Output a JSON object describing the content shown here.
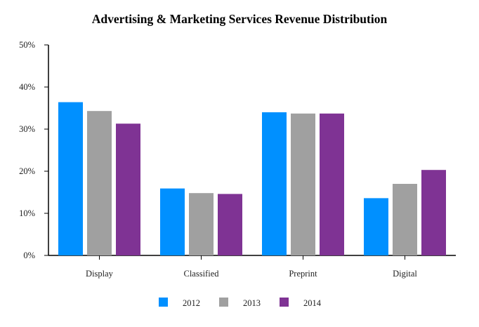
{
  "chart_data": {
    "type": "bar",
    "title": "Advertising & Marketing Services Revenue Distribution",
    "xlabel": "",
    "ylabel": "",
    "categories": [
      "Display",
      "Classified",
      "Preprint",
      "Digital"
    ],
    "series": [
      {
        "name": "2012",
        "color": "#0090FF",
        "values": [
          36.4,
          15.9,
          34.0,
          13.6
        ]
      },
      {
        "name": "2013",
        "color": "#A0A0A0",
        "values": [
          34.3,
          14.8,
          33.7,
          17.0
        ]
      },
      {
        "name": "2014",
        "color": "#7F3394",
        "values": [
          31.3,
          14.6,
          33.7,
          20.3
        ]
      }
    ],
    "ylim": [
      0,
      50
    ],
    "yticks": [
      0,
      10,
      20,
      30,
      40,
      50
    ],
    "ytick_labels": [
      "0%",
      "10%",
      "20%",
      "30%",
      "40%",
      "50%"
    ],
    "grid": false,
    "legend_position": "bottom-center"
  }
}
